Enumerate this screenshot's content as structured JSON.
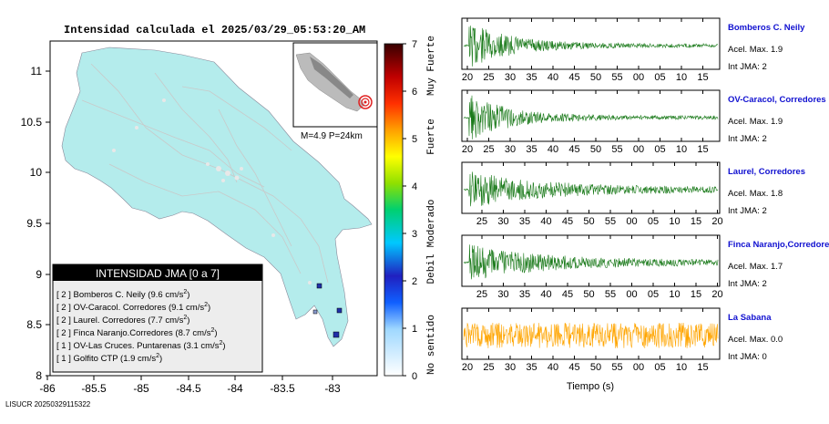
{
  "map": {
    "title": "Intensidad calculada el 2025/03/29_05:53:20_AM",
    "footer_id": "LISUCR 20250329115322",
    "y_ticks": [
      "11",
      "10.5",
      "10",
      "9.5",
      "9",
      "8.5",
      "8"
    ],
    "x_ticks": [
      "-86",
      "-85.5",
      "-85",
      "-84.5",
      "-84",
      "-83.5",
      "-83"
    ],
    "inset_label": "M=4.9 P=24km",
    "legend": {
      "title": "INTENSIDAD JMA [0 a 7]",
      "items": [
        {
          "level": "[ 2 ]",
          "name": "Bomberos C. Neily",
          "value": "(9.6 cm/s",
          "sup": "2",
          "close": ")"
        },
        {
          "level": "[ 2 ]",
          "name": "OV-Caracol. Corredores",
          "value": "(9.1 cm/s",
          "sup": "2",
          "close": ")"
        },
        {
          "level": "[ 2 ]",
          "name": "Laurel. Corredores",
          "value": "(7.7 cm/s",
          "sup": "2",
          "close": ")"
        },
        {
          "level": "[ 2 ]",
          "name": "Finca Naranjo.Corredores",
          "value": "(8.7 cm/s",
          "sup": "2",
          "close": ")"
        },
        {
          "level": "[ 1 ]",
          "name": "OV-Las Cruces. Puntarenas",
          "value": "(3.1 cm/s",
          "sup": "2",
          "close": ")"
        },
        {
          "level": "[ 1 ]",
          "name": "Golfito CTP",
          "value": "(1.9 cm/s",
          "sup": "2",
          "close": ")"
        }
      ]
    },
    "colorbar": {
      "ticks": [
        "7",
        "6",
        "5",
        "4",
        "3",
        "2",
        "1",
        "0"
      ],
      "labels": [
        "Muy Fuerte",
        "Fuerte",
        "Moderado",
        "Debil",
        "No sentido"
      ]
    },
    "colors": {
      "land": "#b4ecec",
      "marker": "#1f2fa8",
      "epicenter": "#e02020"
    }
  },
  "chart_data": {
    "type": "line",
    "xlabel": "Tiempo (s)",
    "panels": [
      {
        "station": "Bomberos C. Neily",
        "acel": "Acel. Max. 1.9",
        "int": "Int JMA: 2",
        "x_ticks": [
          "20",
          "25",
          "30",
          "35",
          "40",
          "45",
          "50",
          "55",
          "00",
          "05",
          "10",
          "15"
        ],
        "color": "#1a7a1a"
      },
      {
        "station": "OV-Caracol, Corredores",
        "acel": "Acel. Max. 1.9",
        "int": "Int JMA: 2",
        "x_ticks": [
          "20",
          "25",
          "30",
          "35",
          "40",
          "45",
          "50",
          "55",
          "00",
          "05",
          "10",
          "15"
        ],
        "color": "#1a7a1a"
      },
      {
        "station": "Laurel, Corredores",
        "acel": "Acel. Max. 1.8",
        "int": "Int JMA: 2",
        "x_ticks": [
          "25",
          "30",
          "35",
          "40",
          "45",
          "50",
          "55",
          "00",
          "05",
          "10",
          "15",
          "20"
        ],
        "color": "#1a7a1a"
      },
      {
        "station": "Finca Naranjo,Corredores",
        "acel": "Acel. Max. 1.7",
        "int": "Int JMA: 2",
        "x_ticks": [
          "25",
          "30",
          "35",
          "40",
          "45",
          "50",
          "55",
          "00",
          "05",
          "10",
          "15",
          "20"
        ],
        "color": "#1a7a1a"
      },
      {
        "station": "La Sabana",
        "acel": "Acel. Max. 0.0",
        "int": "Int JMA: 0",
        "x_ticks": [
          "20",
          "25",
          "30",
          "35",
          "40",
          "45",
          "50",
          "55",
          "00",
          "05",
          "10",
          "15"
        ],
        "color": "#ffa500"
      }
    ]
  }
}
